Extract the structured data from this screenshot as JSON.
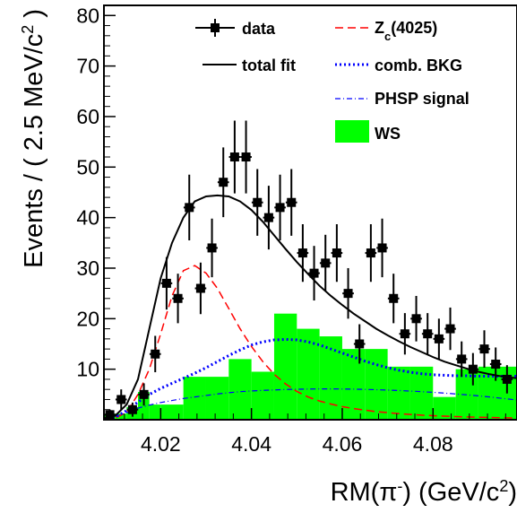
{
  "chart_data": {
    "type": "histogram-fit",
    "xlabel": "RM(π⁻) (GeV/c²)",
    "ylabel": "Events / ( 2.5 MeV/c² )",
    "xlim": [
      4.0075,
      4.0985
    ],
    "ylim": [
      0,
      82
    ],
    "x_ticks": [
      4.02,
      4.04,
      4.06,
      4.08
    ],
    "x_tick_labels": [
      "4.02",
      "4.04",
      "4.06",
      "4.08"
    ],
    "y_ticks": [
      10,
      20,
      30,
      40,
      50,
      60,
      70,
      80
    ],
    "y_tick_labels": [
      "10",
      "20",
      "30",
      "40",
      "50",
      "60",
      "70",
      "80"
    ],
    "legend": [
      {
        "key": "data",
        "label": "data",
        "style": "marker"
      },
      {
        "key": "zc",
        "label_main": "Z",
        "label_sub": "c",
        "label_rest": "(4025)",
        "style": "dashed",
        "color": "#ff0000"
      },
      {
        "key": "total",
        "label": "total fit",
        "style": "solid",
        "color": "#000000"
      },
      {
        "key": "comb",
        "label": "comb. BKG",
        "style": "dotted",
        "color": "#0000ff"
      },
      {
        "key": "phsp",
        "label": "PHSP signal",
        "style": "dashdot",
        "color": "#0000ff"
      },
      {
        "key": "ws",
        "label": "WS",
        "style": "fill",
        "color": "#00ff00"
      }
    ],
    "data_points": {
      "x": [
        4.0088,
        4.0113,
        4.0138,
        4.0163,
        4.0188,
        4.0213,
        4.0238,
        4.0263,
        4.0288,
        4.0313,
        4.0338,
        4.0363,
        4.0388,
        4.0413,
        4.0438,
        4.0463,
        4.0488,
        4.0513,
        4.0538,
        4.0563,
        4.0588,
        4.0613,
        4.0638,
        4.0663,
        4.0688,
        4.0713,
        4.0738,
        4.0763,
        4.0788,
        4.0813,
        4.0838,
        4.0863,
        4.0888,
        4.0913,
        4.0938,
        4.0963
      ],
      "y": [
        1,
        4,
        2,
        5,
        13,
        27,
        24,
        42,
        26,
        34,
        47,
        52,
        52,
        43,
        40,
        42,
        43,
        33,
        29,
        31,
        33,
        25,
        15,
        33,
        34,
        24,
        17,
        20,
        17,
        16,
        18,
        12,
        10,
        14,
        11,
        8
      ],
      "err": [
        1,
        2,
        1.4,
        2.2,
        3.6,
        5.2,
        4.9,
        6.5,
        5.1,
        5.8,
        6.9,
        7.2,
        7.2,
        6.6,
        6.3,
        6.5,
        6.6,
        5.7,
        5.4,
        5.6,
        5.7,
        5,
        3.9,
        5.7,
        5.8,
        4.9,
        4.1,
        4.5,
        4.1,
        4,
        4.2,
        3.5,
        3.2,
        3.7,
        3.3,
        2.8
      ]
    },
    "ws_hist": {
      "edges": [
        4.0075,
        4.01,
        4.0125,
        4.015,
        4.0175,
        4.02,
        4.025,
        4.03,
        4.035,
        4.04,
        4.045,
        4.05,
        4.055,
        4.06,
        4.065,
        4.07,
        4.075,
        4.08,
        4.085,
        4.09,
        4.0985
      ],
      "values": [
        1.2,
        1.2,
        2.5,
        5.5,
        3,
        3,
        8.5,
        8.5,
        12,
        9.5,
        21,
        18,
        16.5,
        14,
        14,
        10.5,
        10.5,
        4.5,
        10,
        10.5
      ]
    },
    "curves": {
      "x": [
        4.0075,
        4.01,
        4.0125,
        4.015,
        4.0175,
        4.02,
        4.0225,
        4.025,
        4.0275,
        4.03,
        4.0325,
        4.035,
        4.0375,
        4.04,
        4.0425,
        4.045,
        4.0475,
        4.05,
        4.0525,
        4.055,
        4.0575,
        4.06,
        4.0625,
        4.065,
        4.0675,
        4.07,
        4.0725,
        4.075,
        4.0775,
        4.08,
        4.0825,
        4.085,
        4.0875,
        4.09,
        4.0925,
        4.095,
        4.0985
      ],
      "total": [
        0.3,
        0.8,
        3,
        8,
        18,
        28,
        35,
        40,
        43.2,
        44.2,
        44.4,
        44.2,
        43.2,
        41.5,
        39.2,
        36.5,
        33.8,
        31.2,
        28.8,
        26.5,
        24.5,
        22.7,
        21,
        19.5,
        18,
        16.7,
        15.5,
        14.4,
        13.4,
        12.4,
        11.5,
        10.8,
        10.1,
        9.5,
        9,
        8.6,
        8.2
      ],
      "zc": [
        0.1,
        0.3,
        1.5,
        5,
        10,
        17,
        24.5,
        29.5,
        30.5,
        29,
        26,
        22,
        18,
        14.5,
        11.5,
        9,
        7.1,
        5.6,
        4.5,
        3.7,
        3.1,
        2.6,
        2.2,
        1.9,
        1.6,
        1.4,
        1.2,
        1.05,
        0.9,
        0.8,
        0.7,
        0.62,
        0.55,
        0.5,
        0.45,
        0.4,
        0.35
      ],
      "comb": [
        0.1,
        0.5,
        1.8,
        3.5,
        5,
        6.2,
        7.2,
        8.2,
        9.2,
        10.3,
        11.5,
        12.7,
        13.8,
        14.8,
        15.4,
        15.8,
        15.9,
        15.8,
        15.4,
        14.8,
        14,
        13.2,
        12.4,
        11.6,
        10.9,
        10.3,
        9.8,
        9.4,
        9.1,
        8.9,
        8.8,
        8.7,
        8.7,
        8.6,
        8.6,
        8.6,
        8.6
      ],
      "phsp": [
        0.1,
        0.6,
        1.4,
        2.3,
        2.9,
        3.4,
        3.8,
        4.2,
        4.5,
        4.8,
        5.1,
        5.35,
        5.55,
        5.7,
        5.8,
        5.9,
        5.98,
        6.03,
        6.07,
        6.1,
        6.1,
        6.08,
        6.05,
        6,
        5.94,
        5.87,
        5.78,
        5.67,
        5.55,
        5.42,
        5.27,
        5.1,
        4.92,
        4.72,
        4.5,
        4.25,
        3.9
      ]
    }
  }
}
